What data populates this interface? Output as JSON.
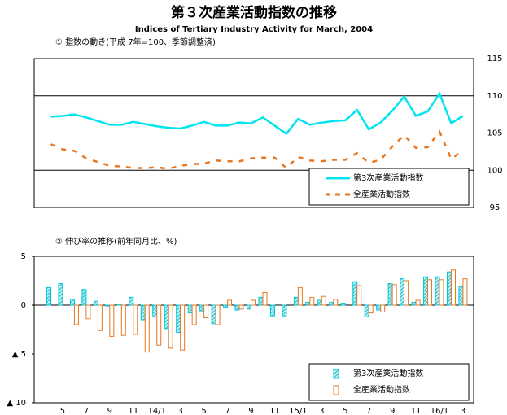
{
  "chart_data": [
    {
      "type": "line",
      "title": "第３次産業活動指数の推移",
      "subtitle": "Indices of Tertiary Industry Activity for March, 2004",
      "label": "① 指数の動き(平成 7年=100、季節調整済)",
      "ylim": [
        95,
        115
      ],
      "yticks": [
        95,
        100,
        105,
        110,
        115
      ],
      "grid": true,
      "legend": "lower right",
      "series": [
        {
          "name": "第3次産業活動指数",
          "color": "#00e5ee",
          "style": "solid",
          "values": [
            107.2,
            107.3,
            107.5,
            107.1,
            106.6,
            106.1,
            106.1,
            106.5,
            106.2,
            105.9,
            105.7,
            105.6,
            106.0,
            106.5,
            106.0,
            106.0,
            106.4,
            106.3,
            107.1,
            106.0,
            104.9,
            106.9,
            106.1,
            106.4,
            106.6,
            106.7,
            108.1,
            105.5,
            106.4,
            108.0,
            109.9,
            107.3,
            107.9,
            110.3,
            106.3,
            107.3
          ]
        },
        {
          "name": "全産業活動指数",
          "color": "#e87722",
          "style": "dashed",
          "values": [
            103.5,
            102.8,
            102.6,
            101.6,
            101.1,
            100.6,
            100.5,
            100.3,
            100.3,
            100.4,
            100.2,
            100.6,
            100.8,
            100.9,
            101.3,
            101.2,
            101.2,
            101.6,
            101.7,
            101.7,
            100.3,
            101.8,
            101.3,
            101.2,
            101.4,
            101.4,
            102.3,
            101.0,
            101.4,
            103.2,
            104.7,
            103.0,
            103.1,
            105.2,
            101.5,
            102.7
          ]
        }
      ]
    },
    {
      "type": "bar",
      "label": "② 伸び率の推移(前年同月比、%)",
      "categories": [
        null,
        "5",
        null,
        "7",
        null,
        "9",
        null,
        "11",
        null,
        "14/1",
        null,
        "3",
        null,
        "5",
        null,
        "7",
        null,
        "9",
        null,
        "11",
        null,
        "15/1",
        null,
        "3",
        null,
        "5",
        null,
        "7",
        null,
        "9",
        null,
        "11",
        null,
        "16/1",
        null,
        "3"
      ],
      "ylim": [
        -10,
        5
      ],
      "yticks": [
        {
          "value": -10,
          "label": "▲ 10"
        },
        {
          "value": -5,
          "label": "▲ 5"
        },
        0,
        5
      ],
      "legend": "lower right",
      "series": [
        {
          "name": "第3次産業活動指数",
          "color": "#00c8d8",
          "values": [
            1.8,
            2.2,
            0.6,
            1.6,
            0.4,
            -0.1,
            0.1,
            0.8,
            -1.5,
            -1.2,
            -2.4,
            -2.8,
            -0.8,
            -0.6,
            -1.9,
            -0.2,
            -0.5,
            -0.4,
            0.8,
            -1.1,
            -1.1,
            0.8,
            0.3,
            0.5,
            0.3,
            0.2,
            2.4,
            -1.2,
            -0.5,
            2.2,
            2.7,
            0.3,
            2.9,
            2.9,
            3.4,
            1.9
          ]
        },
        {
          "name": "全産業活動指数",
          "color": "#e87722",
          "values": [
            0,
            0,
            -2.0,
            -1.4,
            -2.6,
            -3.2,
            -3.1,
            -3.0,
            -4.8,
            -4.1,
            -4.4,
            -4.6,
            -2.0,
            -1.3,
            -2.0,
            0.5,
            -0.4,
            0.5,
            1.3,
            0,
            0,
            1.8,
            0.8,
            0.9,
            0.6,
            0,
            2.0,
            -0.8,
            -0.7,
            2.1,
            2.5,
            0.5,
            2.6,
            2.6,
            3.6,
            2.7
          ]
        }
      ]
    }
  ]
}
